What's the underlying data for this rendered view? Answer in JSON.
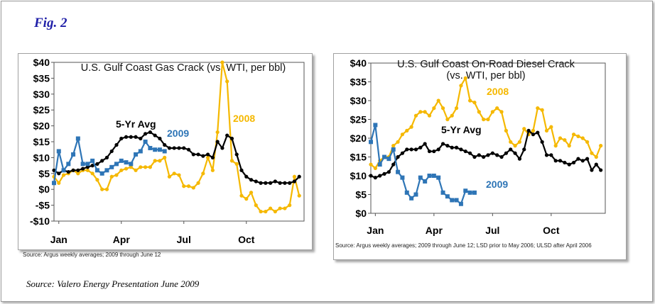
{
  "figure_label": "Fig. 2",
  "footer_source": "Source:  Valero Energy Presentation June 2009",
  "colors": {
    "avg": "#000000",
    "y2009": "#2e75b6",
    "y2008": "#f5b800",
    "figlabel": "#1f1fa8"
  },
  "chart_data": [
    {
      "type": "line",
      "title": "U.S. Gulf Coast Gas Crack (vs. WTI, per bbl)",
      "source_note": "Source:  Argus weekly averages; 2009 through June 12",
      "ylim": [
        -10,
        40
      ],
      "xlim": [
        0,
        52
      ],
      "yticks": [
        -10,
        -5,
        0,
        5,
        10,
        15,
        20,
        25,
        30,
        35,
        40
      ],
      "ytick_labels": [
        "-$10",
        "-$5",
        "$0",
        "$5",
        "$10",
        "$15",
        "$20",
        "$25",
        "$30",
        "$35",
        "$40"
      ],
      "xticks": [
        {
          "x": 1,
          "label": "Jan"
        },
        {
          "x": 14,
          "label": "Apr"
        },
        {
          "x": 27,
          "label": "Jul"
        },
        {
          "x": 40,
          "label": "Oct"
        }
      ],
      "grid": false,
      "legend": "inline labels",
      "series": [
        {
          "name": "5-Yr Avg",
          "color_key": "avg",
          "marker": "circle",
          "x": [
            0,
            1,
            2,
            3,
            4,
            5,
            6,
            7,
            8,
            9,
            10,
            11,
            12,
            13,
            14,
            15,
            16,
            17,
            18,
            19,
            20,
            21,
            22,
            23,
            24,
            25,
            26,
            27,
            28,
            29,
            30,
            31,
            32,
            33,
            34,
            35,
            36,
            37,
            38,
            39,
            40,
            41,
            42,
            43,
            44,
            45,
            46,
            47,
            48,
            49,
            50,
            51
          ],
          "y": [
            6,
            5,
            6,
            5.5,
            6,
            6,
            6.5,
            7,
            7.5,
            8,
            9,
            10,
            12,
            14,
            16,
            16.5,
            16.5,
            16.5,
            16,
            17.5,
            18,
            17,
            16,
            14,
            13,
            13,
            13,
            13,
            12.5,
            11,
            11,
            10.5,
            11,
            10,
            15,
            13,
            17,
            16,
            11,
            6,
            4,
            3,
            2.5,
            2,
            2,
            2,
            2.5,
            2,
            2,
            2,
            2.5,
            4
          ]
        },
        {
          "name": "2009",
          "color_key": "y2009",
          "marker": "square",
          "x": [
            0,
            1,
            2,
            3,
            4,
            5,
            6,
            7,
            8,
            9,
            10,
            11,
            12,
            13,
            14,
            15,
            16,
            17,
            18,
            19,
            20,
            21,
            22,
            23
          ],
          "y": [
            2,
            12,
            6,
            8,
            11,
            16,
            8,
            8,
            9,
            6,
            5,
            6,
            7,
            8,
            9,
            8.5,
            8,
            11,
            12,
            15,
            13,
            12.5,
            12.5,
            12
          ]
        },
        {
          "name": "2008",
          "color_key": "y2008",
          "marker": "circle",
          "x": [
            0,
            1,
            2,
            3,
            4,
            5,
            6,
            7,
            8,
            9,
            10,
            11,
            12,
            13,
            14,
            15,
            16,
            17,
            18,
            19,
            20,
            21,
            22,
            23,
            24,
            25,
            26,
            27,
            28,
            29,
            30,
            31,
            32,
            33,
            34,
            35,
            36,
            37,
            38,
            39,
            40,
            41,
            42,
            43,
            44,
            45,
            46,
            47,
            48,
            49,
            50,
            51
          ],
          "y": [
            4,
            2,
            4.5,
            5,
            6,
            5,
            6,
            6,
            5,
            3,
            0,
            0,
            4,
            4.5,
            6,
            6.5,
            7,
            6,
            7,
            7,
            7,
            9,
            9,
            10,
            4,
            5,
            4.5,
            1,
            1,
            0.5,
            2,
            5,
            10,
            6,
            18,
            40,
            34,
            9,
            8,
            -2,
            -3,
            -1,
            -5,
            -7,
            -7,
            -6,
            -7,
            -6,
            -6,
            -5,
            4,
            -2
          ]
        }
      ],
      "annotations": [
        {
          "text": "5-Yr Avg",
          "color_key": "avg"
        },
        {
          "text": "2009",
          "color_key": "y2009"
        },
        {
          "text": "2008",
          "color_key": "y2008"
        }
      ]
    },
    {
      "type": "line",
      "title": "U.S. Gulf Coast On-Road Diesel Crack",
      "subtitle": "(vs. WTI, per bbl)",
      "source_note": "Source:  Argus weekly averages; 2009 through June 12; LSD prior to May 2006; ULSD after April 2006",
      "ylim": [
        0,
        40
      ],
      "xlim": [
        0,
        52
      ],
      "yticks": [
        0,
        5,
        10,
        15,
        20,
        25,
        30,
        35,
        40
      ],
      "ytick_labels": [
        "$0",
        "$5",
        "$10",
        "$15",
        "$20",
        "$25",
        "$30",
        "$35",
        "$40"
      ],
      "xticks": [
        {
          "x": 1,
          "label": "Jan"
        },
        {
          "x": 14,
          "label": "Apr"
        },
        {
          "x": 27,
          "label": "Jul"
        },
        {
          "x": 40,
          "label": "Oct"
        }
      ],
      "grid": false,
      "legend": "inline labels",
      "series": [
        {
          "name": "5-Yr Avg",
          "color_key": "avg",
          "marker": "circle",
          "x": [
            0,
            1,
            2,
            3,
            4,
            5,
            6,
            7,
            8,
            9,
            10,
            11,
            12,
            13,
            14,
            15,
            16,
            17,
            18,
            19,
            20,
            21,
            22,
            23,
            24,
            25,
            26,
            27,
            28,
            29,
            30,
            31,
            32,
            33,
            34,
            35,
            36,
            37,
            38,
            39,
            40,
            41,
            42,
            43,
            44,
            45,
            46,
            47,
            48,
            49,
            50,
            51
          ],
          "y": [
            10,
            9.5,
            10,
            10.5,
            11,
            13,
            15,
            16,
            17,
            17,
            17,
            17.5,
            18.5,
            16.5,
            16.5,
            17,
            18.5,
            18,
            17.5,
            17.5,
            17,
            16.5,
            16,
            15,
            15.5,
            15,
            15.5,
            16,
            15.5,
            15,
            16,
            17,
            16,
            14.5,
            17,
            22,
            21,
            21.5,
            19,
            15.5,
            15.5,
            14,
            14,
            13.5,
            13,
            13.5,
            14.5,
            14,
            14.5,
            11.5,
            13,
            11.5
          ]
        },
        {
          "name": "2009",
          "color_key": "y2009",
          "marker": "square",
          "x": [
            0,
            1,
            2,
            3,
            4,
            5,
            6,
            7,
            8,
            9,
            10,
            11,
            12,
            13,
            14,
            15,
            16,
            17,
            18,
            19,
            20,
            21,
            22,
            23
          ],
          "y": [
            19,
            23.5,
            13,
            15,
            14.5,
            17,
            11,
            9.5,
            5.5,
            4,
            5,
            9.5,
            8.5,
            10,
            10,
            9.5,
            5.5,
            4.5,
            3.5,
            3.5,
            2.5,
            6,
            5.5,
            5.5
          ]
        },
        {
          "name": "2008",
          "color_key": "y2008",
          "marker": "circle",
          "x": [
            0,
            1,
            2,
            3,
            4,
            5,
            6,
            7,
            8,
            9,
            10,
            11,
            12,
            13,
            14,
            15,
            16,
            17,
            18,
            19,
            20,
            21,
            22,
            23,
            24,
            25,
            26,
            27,
            28,
            29,
            30,
            31,
            32,
            33,
            34,
            35,
            36,
            37,
            38,
            39,
            40,
            41,
            42,
            43,
            44,
            45,
            46,
            47,
            48,
            49,
            50,
            51
          ],
          "y": [
            13,
            12,
            14,
            15,
            15,
            18,
            19,
            21,
            22,
            23,
            26,
            27,
            27,
            26,
            28,
            30,
            28,
            25,
            26,
            28,
            34,
            36,
            30,
            29.5,
            27,
            25,
            25,
            27,
            28,
            27,
            22,
            19,
            18,
            19,
            22.5,
            21,
            22,
            28,
            27.5,
            22,
            23,
            18,
            20,
            19.5,
            18,
            21,
            20.5,
            20,
            19,
            16,
            15,
            18
          ]
        }
      ],
      "annotations": [
        {
          "text": "2008",
          "color_key": "y2008"
        },
        {
          "text": "5-Yr Avg",
          "color_key": "avg"
        },
        {
          "text": "2009",
          "color_key": "y2009"
        }
      ]
    }
  ]
}
